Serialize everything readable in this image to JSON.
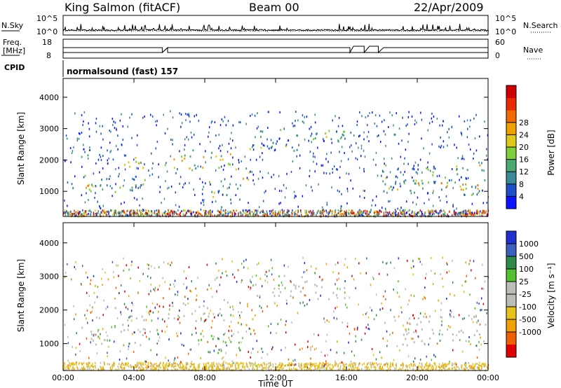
{
  "header": {
    "station": "King Salmon (fitACF)",
    "beam": "Beam 00",
    "date": "22/Apr/2009"
  },
  "top_panels": {
    "left_label_nsky": "N.Sky",
    "left_label_freq_line1": "Freq.",
    "left_label_freq_line2": "[MHz]",
    "left_label_cpid": "CPID",
    "right_label_nsearch": "N.Search",
    "right_label_nave": "Nave",
    "nsky_ticks": [
      "10^5",
      "10^0"
    ],
    "nsearch_ticks": [
      "10^5",
      "10^0"
    ],
    "freq_ticks": [
      "18",
      "8"
    ],
    "nave_ticks": [
      "60",
      "0"
    ],
    "cpid_text": "normalsound (fast) 157"
  },
  "chart_data": [
    {
      "type": "heatmap",
      "name": "power",
      "ylabel": "Slant Range [km]",
      "ylim": [
        200,
        4600
      ],
      "yticks": [
        "1000",
        "2000",
        "3000",
        "4000"
      ],
      "xlim": [
        0,
        24
      ],
      "xticks": [
        "00:00",
        "04:00",
        "08:00",
        "12:00",
        "16:00",
        "20:00",
        "00:00"
      ],
      "colorbar": {
        "label": "Power [dB]",
        "ticks": [
          "4",
          "8",
          "12",
          "16",
          "20",
          "24",
          "28"
        ],
        "colors": [
          "#0a14ff",
          "#1e4fc8",
          "#3a8a98",
          "#4aa870",
          "#7fcf3a",
          "#e0c81a",
          "#f0a000",
          "#f06a00",
          "#e82a00",
          "#d00000"
        ]
      },
      "echo_regions": [
        {
          "t0": 0.5,
          "t1": 4.6,
          "r0": 950,
          "r1": 1600,
          "level": 0.35
        },
        {
          "t0": 0.6,
          "t1": 2.2,
          "r0": 1100,
          "r1": 1300,
          "level": 0.55
        },
        {
          "t0": 2.0,
          "t1": 4.6,
          "r0": 1700,
          "r1": 2100,
          "level": 0.55
        },
        {
          "t0": 1.0,
          "t1": 2.5,
          "r0": 2000,
          "r1": 2400,
          "level": 0.25
        },
        {
          "t0": 5.7,
          "t1": 10.2,
          "r0": 1700,
          "r1": 2350,
          "level": 0.45
        },
        {
          "t0": 7.5,
          "t1": 10.0,
          "r0": 750,
          "r1": 1350,
          "level": 0.4
        },
        {
          "t0": 9.3,
          "t1": 10.8,
          "r0": 1400,
          "r1": 1800,
          "level": 0.45
        },
        {
          "t0": 10.5,
          "t1": 15.9,
          "r0": 2300,
          "r1": 3100,
          "level": 0.3
        },
        {
          "t0": 16.9,
          "t1": 17.2,
          "r0": 1050,
          "r1": 1350,
          "level": 0.35
        },
        {
          "t0": 18.0,
          "t1": 24.0,
          "r0": 900,
          "r1": 1900,
          "level": 0.4
        },
        {
          "t0": 18.5,
          "t1": 23.5,
          "r0": 1050,
          "r1": 1350,
          "level": 0.6
        }
      ]
    },
    {
      "type": "heatmap",
      "name": "velocity",
      "ylabel": "Slant Range [km]",
      "ylim": [
        200,
        4600
      ],
      "yticks": [
        "1000",
        "2000",
        "3000",
        "4000"
      ],
      "xlim": [
        0,
        24
      ],
      "xlabel": "Time UT",
      "xticks": [
        "00:00",
        "04:00",
        "08:00",
        "12:00",
        "16:00",
        "20:00",
        "00:00"
      ],
      "colorbar": {
        "label": "Velocity [m s⁻¹]",
        "ticks": [
          "1000",
          "500",
          "100",
          "25",
          "-25",
          "-100",
          "-500",
          "-1000"
        ],
        "colors": [
          "#1f2fd0",
          "#3d5fc0",
          "#2e8a4a",
          "#55c030",
          "#bdbdb7",
          "#bdbdb7",
          "#e6c21a",
          "#f0a000",
          "#f06000",
          "#e00000"
        ]
      },
      "echo_regions": [
        {
          "t0": 0.5,
          "t1": 4.6,
          "r0": 950,
          "r1": 1600,
          "class": "ground"
        },
        {
          "t0": 2.0,
          "t1": 4.6,
          "r0": 1700,
          "r1": 2100,
          "class": "ground"
        },
        {
          "t0": 5.7,
          "t1": 10.2,
          "r0": 1700,
          "r1": 2350,
          "class": "ground"
        },
        {
          "t0": 7.5,
          "t1": 10.0,
          "r0": 750,
          "r1": 1350,
          "class": "positive_slow"
        },
        {
          "t0": 9.3,
          "t1": 10.8,
          "r0": 1400,
          "r1": 1800,
          "class": "negative_slow"
        },
        {
          "t0": 10.5,
          "t1": 15.9,
          "r0": 2300,
          "r1": 3100,
          "class": "ground"
        },
        {
          "t0": 18.0,
          "t1": 24.0,
          "r0": 900,
          "r1": 1900,
          "class": "ground"
        }
      ]
    }
  ]
}
